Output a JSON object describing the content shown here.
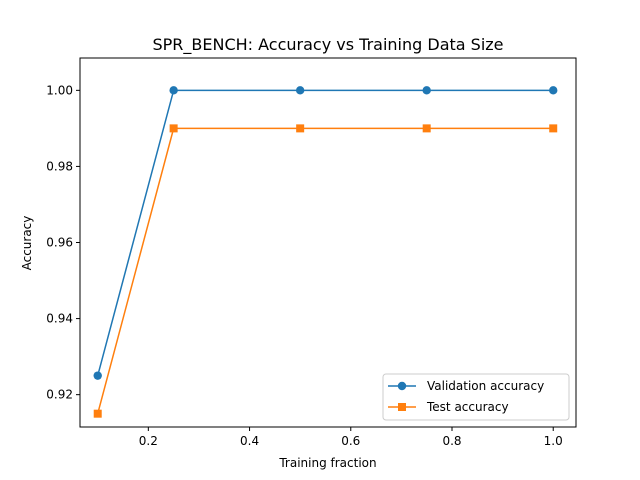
{
  "chart_data": {
    "type": "line",
    "title": "SPR_BENCH: Accuracy vs Training Data Size",
    "xlabel": "Training fraction",
    "ylabel": "Accuracy",
    "xlim": [
      0.065,
      1.045
    ],
    "ylim": [
      0.9115,
      1.0085
    ],
    "xticks": [
      0.2,
      0.4,
      0.6,
      0.8,
      1.0
    ],
    "xtick_labels": [
      "0.2",
      "0.4",
      "0.6",
      "0.8",
      "1.0"
    ],
    "yticks": [
      0.92,
      0.94,
      0.96,
      0.98,
      1.0
    ],
    "ytick_labels": [
      "0.92",
      "0.94",
      "0.96",
      "0.98",
      "1.00"
    ],
    "grid": false,
    "legend_position": "lower-right",
    "x": [
      0.1,
      0.25,
      0.5,
      0.75,
      1.0
    ],
    "series": [
      {
        "name": "Validation accuracy",
        "values": [
          0.925,
          1.0,
          1.0,
          1.0,
          1.0
        ],
        "color": "#1f77b4",
        "marker": "circle"
      },
      {
        "name": "Test accuracy",
        "values": [
          0.915,
          0.99,
          0.99,
          0.99,
          0.99
        ],
        "color": "#ff7f0e",
        "marker": "square"
      }
    ]
  }
}
